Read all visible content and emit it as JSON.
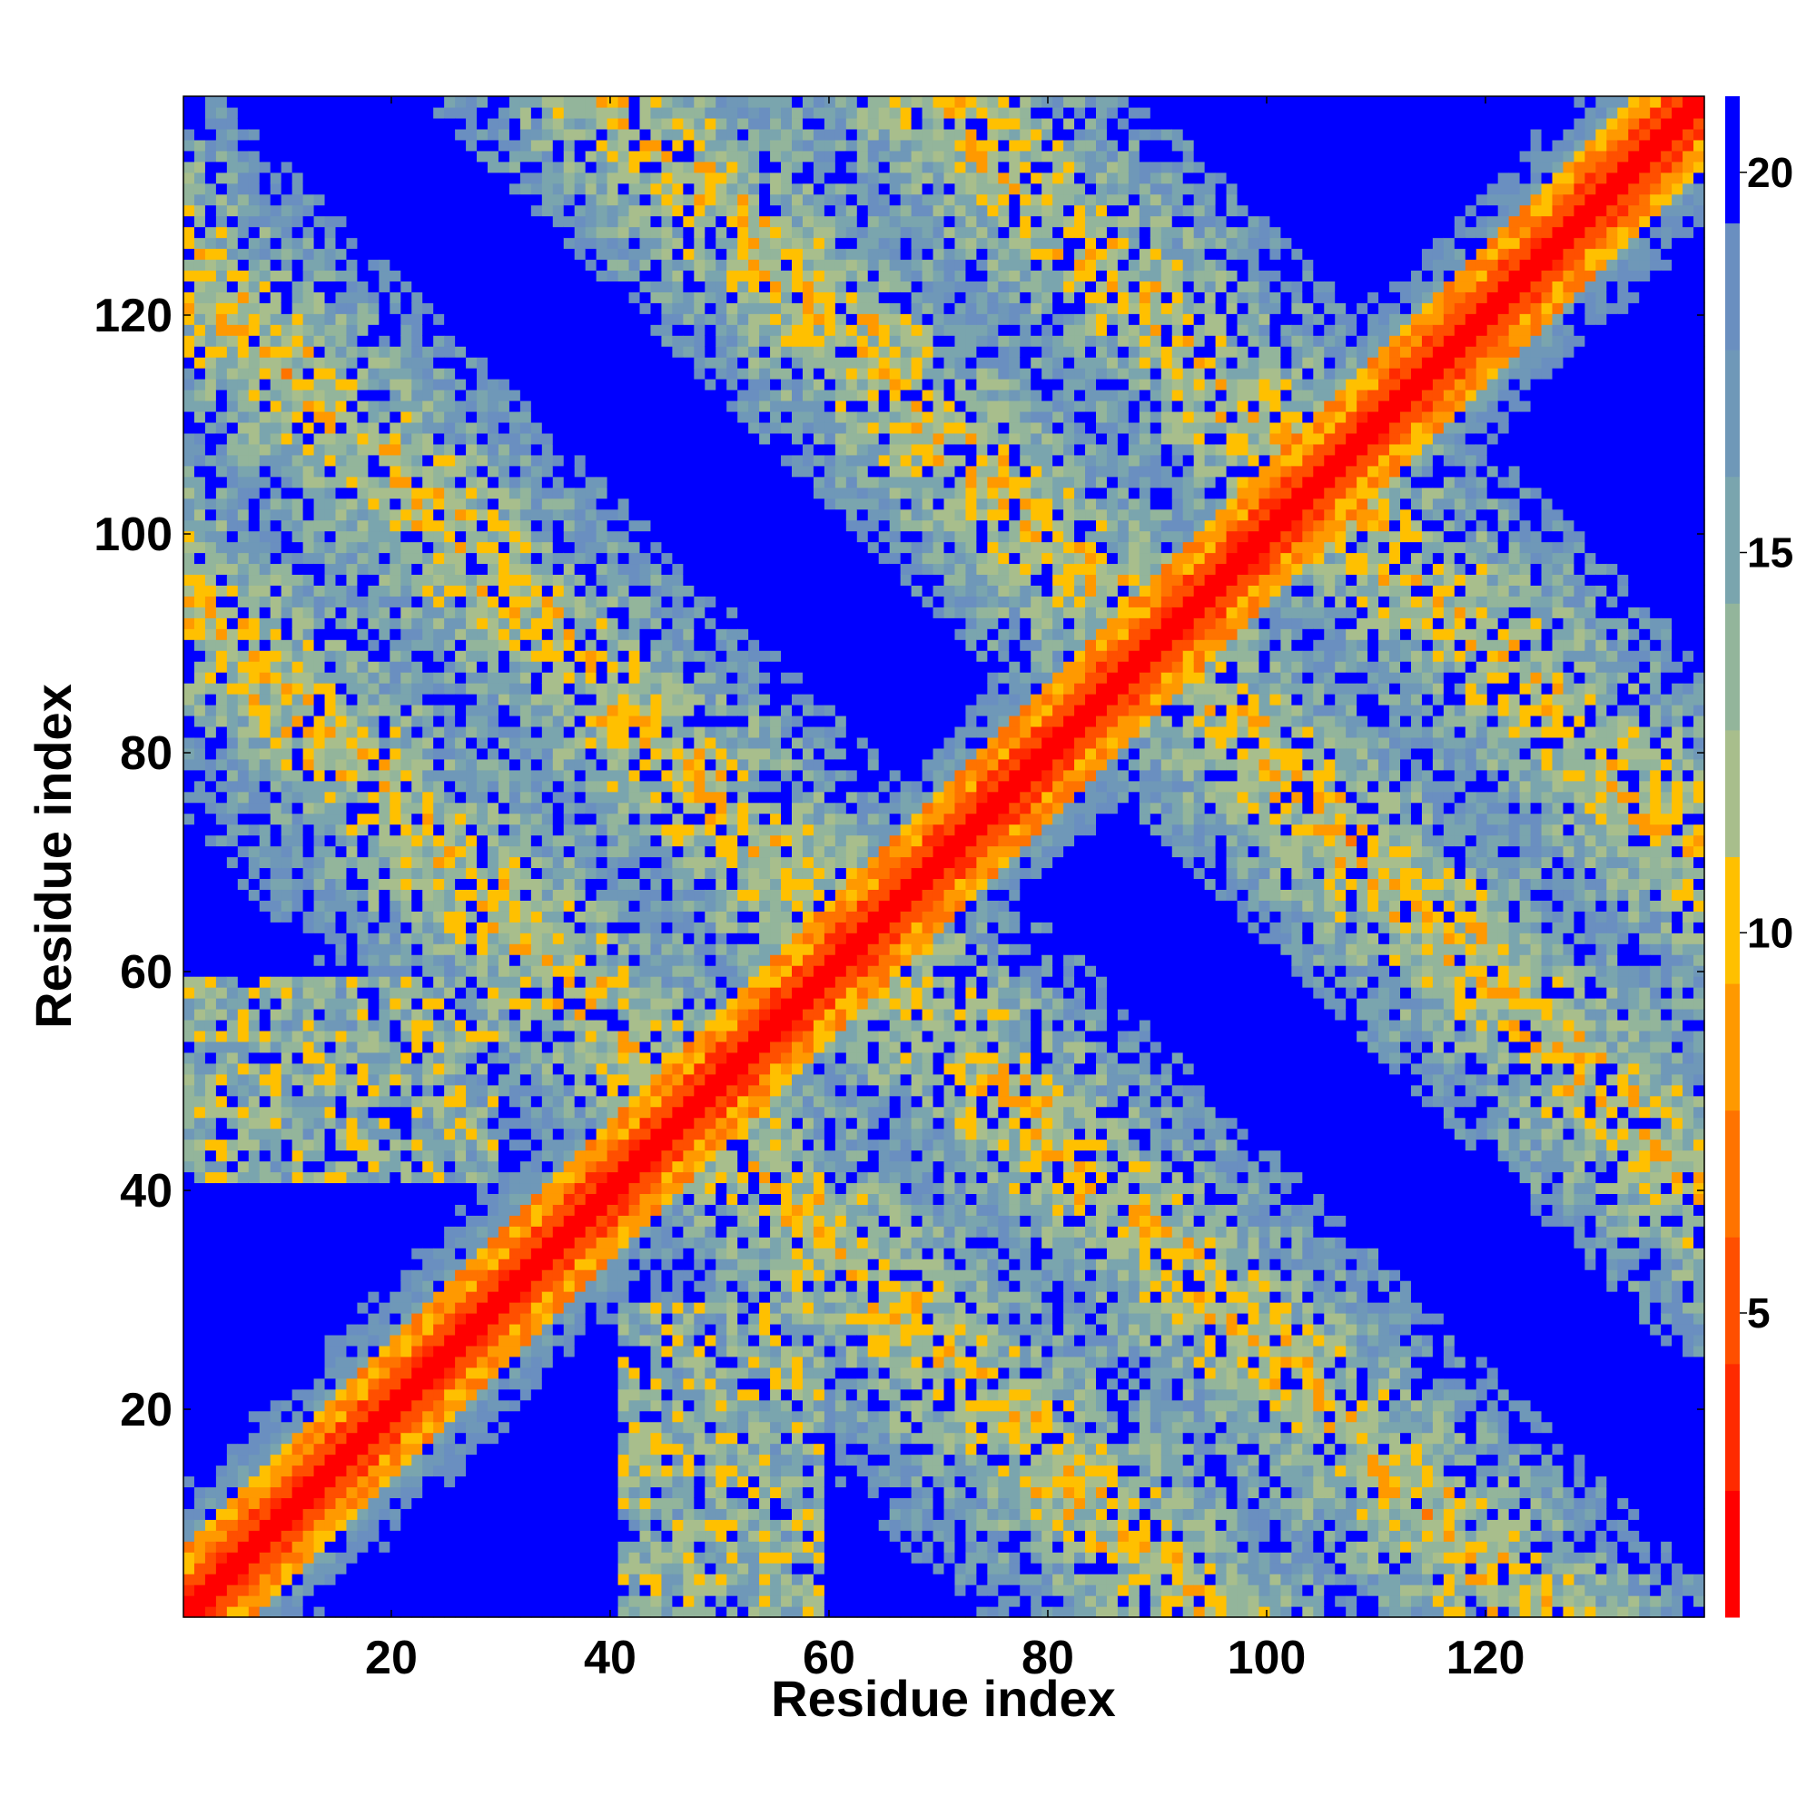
{
  "chart_data": {
    "type": "heatmap",
    "title": "",
    "xlabel": "Residue index",
    "ylabel": "Residue index",
    "xlim": [
      1,
      140
    ],
    "ylim": [
      1,
      140
    ],
    "x_ticks": [
      20,
      40,
      60,
      80,
      100,
      120
    ],
    "y_ticks": [
      20,
      40,
      60,
      80,
      100,
      120
    ],
    "x_tick_labels": [
      "20",
      "40",
      "60",
      "80",
      "100",
      "120"
    ],
    "y_tick_labels": [
      "20",
      "40",
      "60",
      "80",
      "100",
      "120"
    ],
    "colorbar": {
      "range": [
        1,
        21
      ],
      "ticks": [
        5,
        10,
        15,
        20
      ],
      "tick_labels": [
        "5",
        "10",
        "15",
        "20"
      ],
      "colors": [
        "#ff0000",
        "#ff2a00",
        "#ff4f00",
        "#ff7300",
        "#ff9900",
        "#ffc000",
        "#a8be8c",
        "#93b59b",
        "#7aa5ae",
        "#6f98b8",
        "#6a8fc0",
        "#0000ff"
      ]
    },
    "matrix_size": 140,
    "grid": false,
    "structure_note": "Symmetric contact/distance map; strong main diagonal plus anti-diagonal band systems"
  }
}
